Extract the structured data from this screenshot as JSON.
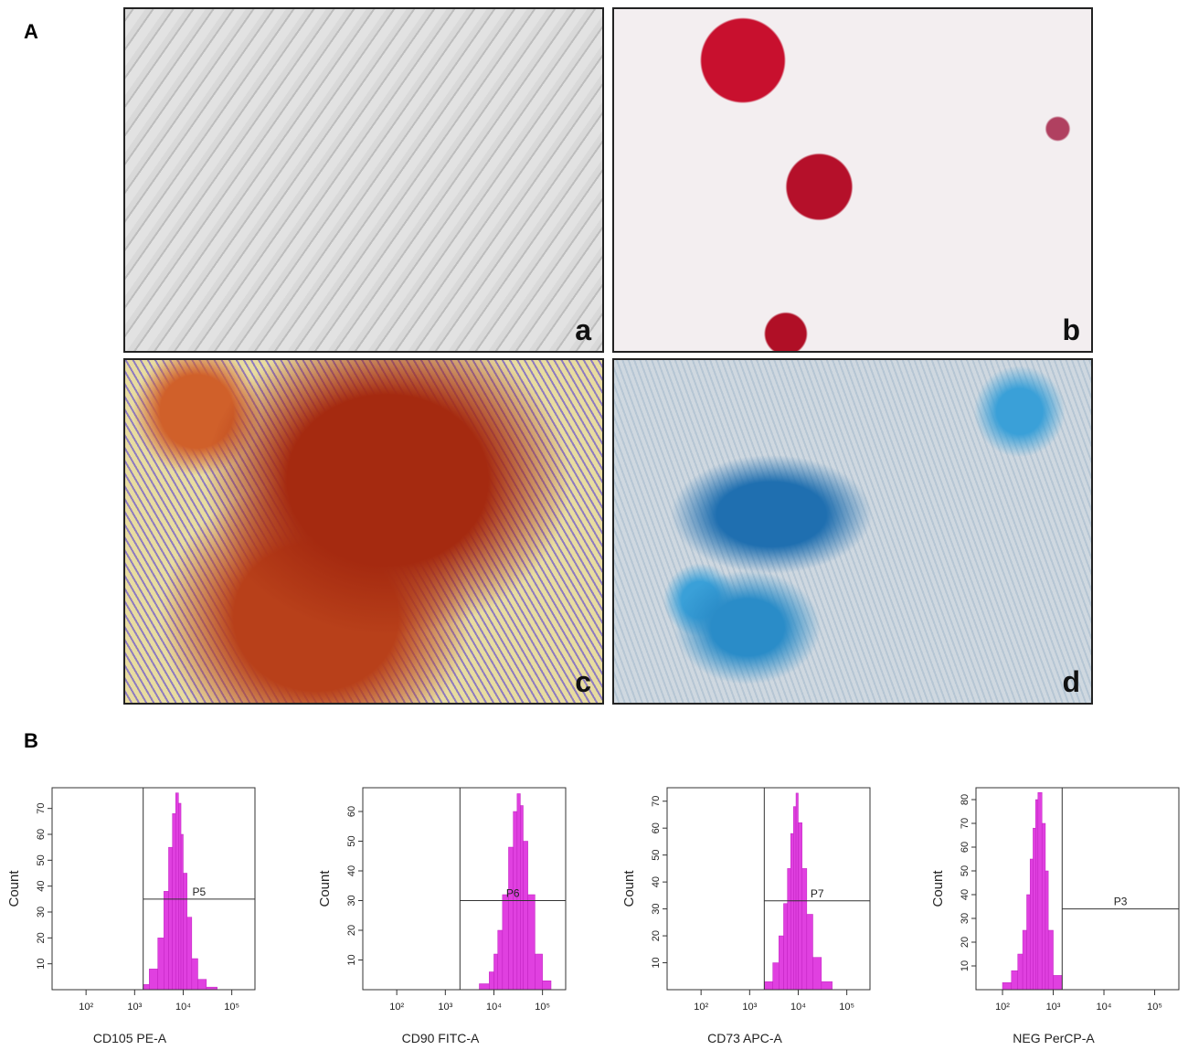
{
  "labels": {
    "panel_a": "A",
    "panel_b": "B",
    "images": [
      "a",
      "b",
      "c",
      "d"
    ]
  },
  "chart_data": [
    {
      "type": "histogram",
      "x_label": "CD105 PE-A",
      "y_label": "Count",
      "color": "#e040e0",
      "log_x": true,
      "xlim": [
        20,
        300000
      ],
      "xticks": [
        {
          "value": 100,
          "label": "10²"
        },
        {
          "value": 1000,
          "label": "10³"
        },
        {
          "value": 10000,
          "label": "10⁴"
        },
        {
          "value": 100000,
          "label": "10⁵"
        }
      ],
      "ylim": [
        0,
        78
      ],
      "yticks": [
        10,
        20,
        30,
        40,
        50,
        60,
        70
      ],
      "bins": [
        1500,
        2000,
        3000,
        4000,
        5000,
        6000,
        7000,
        8000,
        9000,
        10000,
        12000,
        15000,
        20000,
        30000,
        50000
      ],
      "counts": [
        2,
        8,
        20,
        38,
        55,
        68,
        76,
        72,
        60,
        45,
        28,
        12,
        4,
        1
      ],
      "gate": {
        "label": "P5",
        "x": 1500,
        "y": 35
      }
    },
    {
      "type": "histogram",
      "x_label": "CD90 FITC-A",
      "y_label": "Count",
      "color": "#e040e0",
      "log_x": true,
      "xlim": [
        20,
        300000
      ],
      "xticks": [
        {
          "value": 100,
          "label": "10²"
        },
        {
          "value": 1000,
          "label": "10³"
        },
        {
          "value": 10000,
          "label": "10⁴"
        },
        {
          "value": 100000,
          "label": "10⁵"
        }
      ],
      "ylim": [
        0,
        68
      ],
      "yticks": [
        10,
        20,
        30,
        40,
        50,
        60
      ],
      "bins": [
        5000,
        8000,
        10000,
        12000,
        15000,
        20000,
        25000,
        30000,
        35000,
        40000,
        50000,
        70000,
        100000,
        150000
      ],
      "counts": [
        2,
        6,
        12,
        20,
        32,
        48,
        60,
        66,
        62,
        50,
        32,
        12,
        3
      ],
      "gate": {
        "label": "P6",
        "x": 2000,
        "y": 30
      }
    },
    {
      "type": "histogram",
      "x_label": "CD73 APC-A",
      "y_label": "Count",
      "color": "#e040e0",
      "log_x": true,
      "xlim": [
        20,
        300000
      ],
      "xticks": [
        {
          "value": 100,
          "label": "10²"
        },
        {
          "value": 1000,
          "label": "10³"
        },
        {
          "value": 10000,
          "label": "10⁴"
        },
        {
          "value": 100000,
          "label": "10⁵"
        }
      ],
      "ylim": [
        0,
        75
      ],
      "yticks": [
        10,
        20,
        30,
        40,
        50,
        60,
        70
      ],
      "bins": [
        2000,
        3000,
        4000,
        5000,
        6000,
        7000,
        8000,
        9000,
        10000,
        12000,
        15000,
        20000,
        30000,
        50000
      ],
      "counts": [
        3,
        10,
        20,
        32,
        45,
        58,
        68,
        73,
        62,
        45,
        28,
        12,
        3
      ],
      "gate": {
        "label": "P7",
        "x": 2000,
        "y": 33
      }
    },
    {
      "type": "histogram",
      "x_label": "NEG PerCP-A",
      "y_label": "Count",
      "color": "#e040e0",
      "log_x": true,
      "xlim": [
        30,
        300000
      ],
      "xticks": [
        {
          "value": 100,
          "label": "10²"
        },
        {
          "value": 1000,
          "label": "10³"
        },
        {
          "value": 10000,
          "label": "10⁴"
        },
        {
          "value": 100000,
          "label": "10⁵"
        }
      ],
      "ylim": [
        0,
        85
      ],
      "yticks": [
        10,
        20,
        30,
        40,
        50,
        60,
        70,
        80
      ],
      "bins": [
        100,
        150,
        200,
        250,
        300,
        350,
        400,
        450,
        500,
        600,
        700,
        800,
        1000,
        1500
      ],
      "counts": [
        3,
        8,
        15,
        25,
        40,
        55,
        68,
        80,
        83,
        70,
        50,
        25,
        6
      ],
      "gate": {
        "label": "P3",
        "x": 1500,
        "y": 34
      }
    }
  ]
}
